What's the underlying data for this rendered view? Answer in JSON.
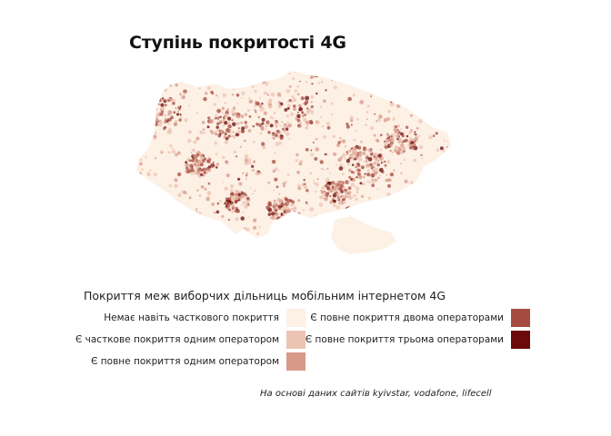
{
  "title": "Ступінь покритості 4G",
  "legend": {
    "title": "Покриття меж виборчих дільниць мобільним інтернетом 4G",
    "items": [
      {
        "label": "Немає навіть часткового покриття",
        "color": "#fdf0e5"
      },
      {
        "label": "Є часткове покриття одним оператором",
        "color": "#ecc4b3"
      },
      {
        "label": "Є повне покриття одним оператором",
        "color": "#d79a88"
      },
      {
        "label": "Є повне покриття двома операторами",
        "color": "#a64b3f"
      },
      {
        "label": "Є повне покриття трьома операторами",
        "color": "#6b0a0a"
      }
    ]
  },
  "note": "На основі даних сайтів kyivstar, vodafone, lifecell"
}
